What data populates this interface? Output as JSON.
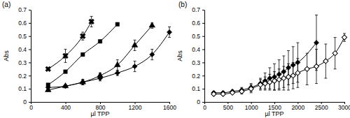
{
  "chart_data": [
    {
      "type": "line",
      "title": "(a)",
      "x_label": "µl TPP",
      "y_label": "Abs",
      "xlim": [
        0,
        1600
      ],
      "xticks": [
        0,
        400,
        800,
        1200,
        1600
      ],
      "ylim": [
        0,
        0.7
      ],
      "yticks": [
        0,
        0.1,
        0.2,
        0.3,
        0.4,
        0.5,
        0.6,
        0.7
      ],
      "series": [
        {
          "color": "#000000",
          "marker": "x",
          "x": [
            200,
            400,
            600,
            700
          ],
          "values": [
            0.25,
            0.35,
            0.5,
            0.61
          ],
          "errors": [
            0.01,
            0.05,
            0.03,
            0.04
          ]
        },
        {
          "color": "#000000",
          "marker": "square",
          "x": [
            200,
            400,
            600,
            800,
            1000
          ],
          "values": [
            0.13,
            0.23,
            0.36,
            0.46,
            0.59
          ],
          "errors": [
            0.01,
            0.01,
            0.01,
            0.01,
            0.01
          ]
        },
        {
          "color": "#000000",
          "marker": "triangle",
          "x": [
            200,
            400,
            600,
            800,
            1000,
            1200,
            1400
          ],
          "values": [
            0.09,
            0.12,
            0.15,
            0.2,
            0.28,
            0.43,
            0.58
          ],
          "errors": [
            0.01,
            0.01,
            0.02,
            0.02,
            0.04,
            0.04,
            0.02
          ]
        },
        {
          "color": "#000000",
          "marker": "diamond",
          "x": [
            200,
            400,
            600,
            800,
            1000,
            1200,
            1400,
            1600
          ],
          "values": [
            0.11,
            0.12,
            0.15,
            0.18,
            0.22,
            0.27,
            0.36,
            0.53
          ],
          "errors": [
            0.01,
            0.01,
            0.02,
            0.02,
            0.02,
            0.04,
            0.04,
            0.04
          ]
        }
      ]
    },
    {
      "type": "line",
      "title": "(b)",
      "x_label": "µl TPP",
      "y_label": "Abs",
      "xlim": [
        0,
        3000
      ],
      "xticks": [
        0,
        500,
        1000,
        1500,
        2000,
        2500,
        3000
      ],
      "ylim": [
        0,
        0.7
      ],
      "yticks": [
        0,
        0.1,
        0.2,
        0.3,
        0.4,
        0.5,
        0.6,
        0.7
      ],
      "series": [
        {
          "color": "#000000",
          "marker": "diamond",
          "x": [
            200,
            400,
            600,
            800,
            1000,
            1200,
            1300,
            1400,
            1500,
            1600,
            1700,
            1800,
            1900,
            2000,
            2400
          ],
          "values": [
            0.07,
            0.07,
            0.08,
            0.09,
            0.11,
            0.14,
            0.16,
            0.18,
            0.19,
            0.21,
            0.23,
            0.26,
            0.28,
            0.3,
            0.45
          ],
          "errors": [
            0.01,
            0.01,
            0.01,
            0.02,
            0.03,
            0.04,
            0.06,
            0.08,
            0.1,
            0.11,
            0.12,
            0.13,
            0.14,
            0.15,
            0.21
          ]
        },
        {
          "color": "#000000",
          "marker": "diamond-open",
          "x": [
            200,
            400,
            600,
            800,
            1000,
            1200,
            1300,
            1400,
            1500,
            1600,
            1700,
            1800,
            1900,
            2000,
            2200,
            2400,
            2600,
            2800,
            3000
          ],
          "values": [
            0.06,
            0.06,
            0.07,
            0.08,
            0.1,
            0.13,
            0.14,
            0.15,
            0.16,
            0.17,
            0.18,
            0.19,
            0.2,
            0.22,
            0.25,
            0.27,
            0.31,
            0.37,
            0.49
          ],
          "errors": [
            0.01,
            0.01,
            0.01,
            0.02,
            0.03,
            0.04,
            0.05,
            0.06,
            0.07,
            0.08,
            0.09,
            0.1,
            0.1,
            0.11,
            0.12,
            0.13,
            0.13,
            0.12,
            0.03
          ]
        }
      ]
    }
  ]
}
